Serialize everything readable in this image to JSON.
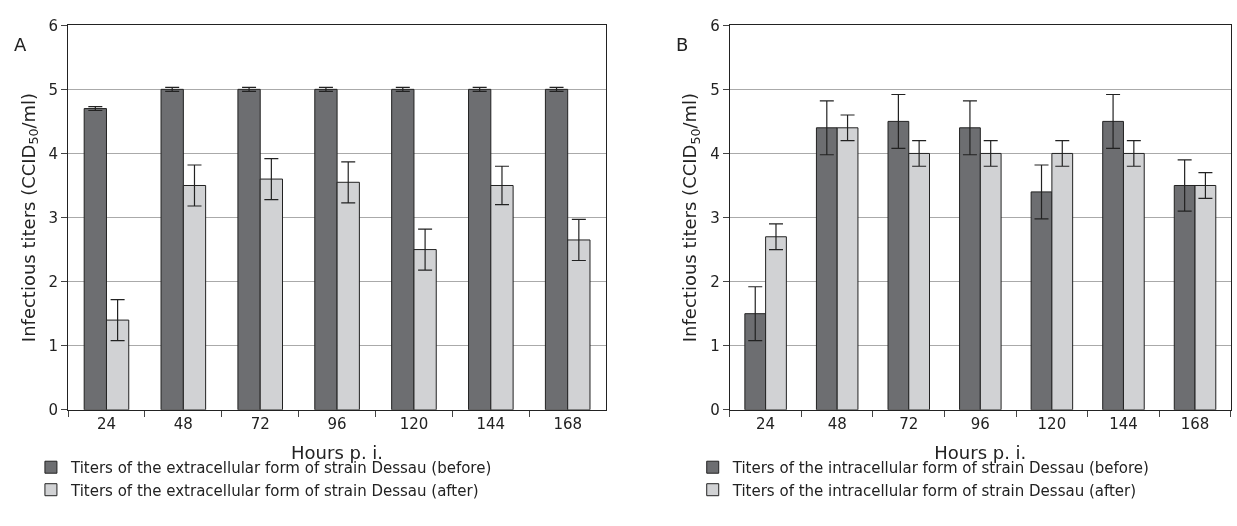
{
  "chart_data": [
    {
      "type": "bar",
      "title": "A",
      "xlabel": "Hours p. i.",
      "ylabel": "Infectious titers (CCID$_{50}$/ml)",
      "categories": [
        "24",
        "48",
        "72",
        "96",
        "120",
        "144",
        "168"
      ],
      "ylim": [
        0,
        6
      ],
      "yticks": [
        0,
        1,
        2,
        3,
        4,
        5,
        6
      ],
      "grid": "y",
      "legend": "bottom",
      "series": [
        {
          "name": "Titers of the extracellular form of strain Dessau (before)",
          "color": "#6d6e71",
          "values": [
            4.7,
            5.0,
            5.0,
            5.0,
            5.0,
            5.0,
            5.0
          ],
          "errors": [
            0.03,
            0.03,
            0.03,
            0.03,
            0.03,
            0.03,
            0.03
          ]
        },
        {
          "name": "Titers of the extracellular form of strain Dessau (after)",
          "color": "#d1d2d4",
          "values": [
            1.4,
            3.5,
            3.6,
            3.55,
            2.5,
            3.5,
            2.65
          ],
          "errors": [
            0.32,
            0.32,
            0.32,
            0.32,
            0.32,
            0.3,
            0.32
          ]
        }
      ]
    },
    {
      "type": "bar",
      "title": "B",
      "xlabel": "Hours p. i.",
      "ylabel": "Infectious titers (CCID$_{50}$/ml)",
      "categories": [
        "24",
        "48",
        "72",
        "96",
        "120",
        "144",
        "168"
      ],
      "ylim": [
        0,
        6
      ],
      "yticks": [
        0,
        1,
        2,
        3,
        4,
        5,
        6
      ],
      "grid": "y",
      "legend": "bottom",
      "series": [
        {
          "name": "Titers of the intracellular form of strain Dessau (before)",
          "color": "#6d6e71",
          "values": [
            1.5,
            4.4,
            4.5,
            4.4,
            3.4,
            4.5,
            3.5
          ],
          "errors": [
            0.42,
            0.42,
            0.42,
            0.42,
            0.42,
            0.42,
            0.4
          ]
        },
        {
          "name": "Titers of the intracellular form of strain Dessau (after)",
          "color": "#d1d2d4",
          "values": [
            2.7,
            4.4,
            4.0,
            4.0,
            4.0,
            4.0,
            3.5
          ],
          "errors": [
            0.2,
            0.2,
            0.2,
            0.2,
            0.2,
            0.2,
            0.2
          ]
        }
      ]
    }
  ]
}
